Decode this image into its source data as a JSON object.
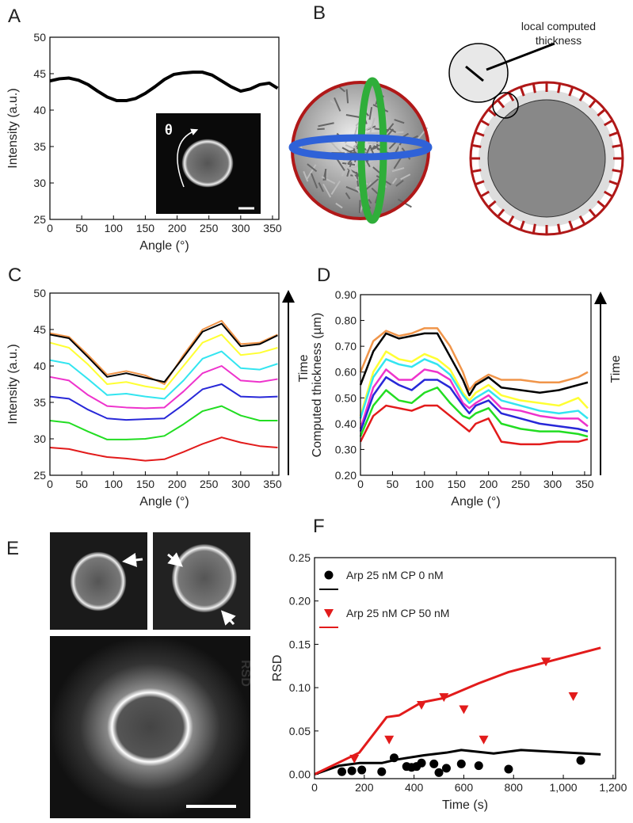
{
  "chart_data": [
    {
      "type": "line",
      "panel": "A",
      "xlabel": "Angle (°)",
      "ylabel": "Intensity (a.u.)",
      "inset_label": "θ",
      "xlim": [
        0,
        360
      ],
      "ylim": [
        25,
        50
      ],
      "xticks": [
        0,
        50,
        100,
        150,
        200,
        250,
        300,
        350
      ],
      "yticks": [
        25,
        30,
        35,
        40,
        45,
        50
      ],
      "x": [
        0,
        15,
        30,
        45,
        60,
        75,
        90,
        105,
        120,
        135,
        150,
        165,
        180,
        195,
        210,
        225,
        240,
        255,
        270,
        285,
        300,
        315,
        330,
        345,
        358
      ],
      "series": [
        {
          "color": "#000000",
          "values": [
            44.0,
            44.3,
            44.4,
            44.1,
            43.5,
            42.6,
            41.8,
            41.3,
            41.3,
            41.6,
            42.3,
            43.2,
            44.2,
            44.9,
            45.1,
            45.2,
            45.2,
            44.8,
            44.0,
            43.2,
            42.6,
            42.9,
            43.5,
            43.7,
            43.0
          ]
        }
      ]
    },
    {
      "type": "line",
      "panel": "C",
      "xlabel": "Angle (°)",
      "ylabel": "Intensity (a.u.)",
      "annotation": "Time",
      "xlim": [
        0,
        360
      ],
      "ylim": [
        25,
        50
      ],
      "xticks": [
        0,
        50,
        100,
        150,
        200,
        250,
        300,
        350
      ],
      "yticks": [
        25,
        30,
        35,
        40,
        45,
        50
      ],
      "x": [
        0,
        30,
        60,
        90,
        120,
        150,
        180,
        210,
        240,
        270,
        300,
        330,
        358
      ],
      "series": [
        {
          "color": "#f0954a",
          "values": [
            44.5,
            44.0,
            41.5,
            38.8,
            39.3,
            38.7,
            37.5,
            41.5,
            45.0,
            46.2,
            43.0,
            43.2,
            44.3
          ]
        },
        {
          "color": "#000000",
          "values": [
            44.3,
            43.8,
            41.2,
            38.5,
            39.0,
            38.4,
            37.8,
            41.2,
            44.7,
            45.8,
            42.7,
            43.0,
            44.2
          ]
        },
        {
          "color": "#ffff33",
          "values": [
            43.2,
            42.5,
            40.2,
            37.5,
            37.8,
            37.2,
            36.8,
            40.0,
            43.2,
            44.3,
            41.5,
            41.8,
            42.5
          ]
        },
        {
          "color": "#33e5f0",
          "values": [
            40.8,
            40.3,
            38.2,
            36.0,
            36.2,
            35.8,
            35.5,
            38.0,
            41.0,
            42.0,
            39.7,
            39.5,
            40.3
          ]
        },
        {
          "color": "#ee33cc",
          "values": [
            38.5,
            38.0,
            36.0,
            34.5,
            34.3,
            34.2,
            34.3,
            36.5,
            39.0,
            40.0,
            38.0,
            37.8,
            38.2
          ]
        },
        {
          "color": "#2828d8",
          "values": [
            35.8,
            35.5,
            34.0,
            32.8,
            32.6,
            32.7,
            32.8,
            34.7,
            36.8,
            37.5,
            35.8,
            35.7,
            35.8
          ]
        },
        {
          "color": "#22dd22",
          "values": [
            32.5,
            32.2,
            31.0,
            29.9,
            29.9,
            30.0,
            30.4,
            32.0,
            33.8,
            34.5,
            33.2,
            32.5,
            32.5
          ]
        },
        {
          "color": "#e21b1b",
          "values": [
            28.8,
            28.6,
            28.0,
            27.5,
            27.3,
            27.0,
            27.2,
            28.2,
            29.3,
            30.2,
            29.5,
            29.0,
            28.8
          ]
        }
      ]
    },
    {
      "type": "line",
      "panel": "D",
      "xlabel": "Angle (°)",
      "ylabel": "Computed thickness (µm)",
      "annotation": "Time",
      "xlim": [
        0,
        360
      ],
      "ylim": [
        0.2,
        0.9
      ],
      "xticks": [
        0,
        50,
        100,
        150,
        200,
        250,
        300,
        350
      ],
      "yticks": [
        {
          "value": 0.2,
          "label": "0.20"
        },
        {
          "value": 0.3,
          "label": "0.30"
        },
        {
          "value": 0.4,
          "label": "0.40"
        },
        {
          "value": 0.5,
          "label": "0.50"
        },
        {
          "value": 0.6,
          "label": "0.60"
        },
        {
          "value": 0.7,
          "label": "0.70"
        },
        {
          "value": 0.8,
          "label": "0.80"
        },
        {
          "value": 0.9,
          "label": "0.90"
        }
      ],
      "x": [
        0,
        20,
        40,
        60,
        80,
        100,
        120,
        140,
        160,
        170,
        180,
        200,
        220,
        250,
        280,
        310,
        340,
        355
      ],
      "series": [
        {
          "color": "#f0954a",
          "values": [
            0.6,
            0.72,
            0.76,
            0.74,
            0.75,
            0.77,
            0.77,
            0.7,
            0.6,
            0.53,
            0.56,
            0.59,
            0.57,
            0.57,
            0.56,
            0.56,
            0.58,
            0.6
          ]
        },
        {
          "color": "#000000",
          "values": [
            0.55,
            0.68,
            0.75,
            0.73,
            0.74,
            0.75,
            0.75,
            0.66,
            0.57,
            0.51,
            0.55,
            0.58,
            0.54,
            0.53,
            0.52,
            0.53,
            0.55,
            0.56
          ]
        },
        {
          "color": "#ffff33",
          "values": [
            0.43,
            0.6,
            0.68,
            0.65,
            0.64,
            0.67,
            0.65,
            0.61,
            0.52,
            0.49,
            0.52,
            0.55,
            0.51,
            0.49,
            0.48,
            0.47,
            0.5,
            0.46
          ]
        },
        {
          "color": "#33e5f0",
          "values": [
            0.42,
            0.58,
            0.65,
            0.63,
            0.62,
            0.65,
            0.63,
            0.59,
            0.51,
            0.48,
            0.5,
            0.53,
            0.49,
            0.47,
            0.45,
            0.44,
            0.45,
            0.42
          ]
        },
        {
          "color": "#ee33cc",
          "values": [
            0.38,
            0.54,
            0.61,
            0.57,
            0.57,
            0.61,
            0.6,
            0.57,
            0.48,
            0.46,
            0.48,
            0.51,
            0.46,
            0.45,
            0.43,
            0.42,
            0.42,
            0.39
          ]
        },
        {
          "color": "#2828d8",
          "values": [
            0.37,
            0.51,
            0.58,
            0.55,
            0.53,
            0.57,
            0.57,
            0.54,
            0.47,
            0.44,
            0.47,
            0.49,
            0.44,
            0.42,
            0.4,
            0.39,
            0.38,
            0.37
          ]
        },
        {
          "color": "#22dd22",
          "values": [
            0.35,
            0.47,
            0.53,
            0.49,
            0.48,
            0.52,
            0.54,
            0.48,
            0.43,
            0.42,
            0.44,
            0.46,
            0.4,
            0.38,
            0.37,
            0.37,
            0.36,
            0.35
          ]
        },
        {
          "color": "#e21b1b",
          "values": [
            0.33,
            0.43,
            0.47,
            0.46,
            0.45,
            0.47,
            0.47,
            0.43,
            0.39,
            0.37,
            0.4,
            0.42,
            0.33,
            0.32,
            0.32,
            0.33,
            0.33,
            0.34
          ]
        }
      ]
    },
    {
      "type": "scatter",
      "panel": "F",
      "xlabel": "Time (s)",
      "ylabel": "RSD",
      "xlim": [
        0,
        1210
      ],
      "ylim": [
        -0.005,
        0.25
      ],
      "xticks": [
        0,
        200,
        400,
        600,
        800,
        {
          "value": 1000,
          "label": "1,000"
        },
        {
          "value": 1200,
          "label": "1,200"
        }
      ],
      "yticks": [
        {
          "value": 0,
          "label": "0.00"
        },
        {
          "value": 0.05,
          "label": "0.05"
        },
        {
          "value": 0.1,
          "label": "0.10"
        },
        {
          "value": 0.15,
          "label": "0.15"
        },
        {
          "value": 0.2,
          "label": "0.20"
        },
        {
          "value": 0.25,
          "label": "0.25"
        }
      ],
      "series": [
        {
          "name": "Arp 25 nM CP 0 nM",
          "color": "#000000",
          "marker": "circle",
          "x": [
            110,
            150,
            190,
            270,
            320,
            370,
            390,
            410,
            430,
            480,
            500,
            530,
            590,
            660,
            780,
            1070
          ],
          "values": [
            0.003,
            0.004,
            0.005,
            0.003,
            0.019,
            0.009,
            0.008,
            0.009,
            0.013,
            0.012,
            0.002,
            0.007,
            0.012,
            0.01,
            0.006,
            0.016
          ],
          "fit_x": [
            0,
            100,
            180,
            270,
            330,
            440,
            530,
            590,
            720,
            830,
            1150
          ],
          "fit_values": [
            0,
            0.01,
            0.013,
            0.013,
            0.017,
            0.022,
            0.025,
            0.028,
            0.024,
            0.028,
            0.023
          ]
        },
        {
          "name": "Arp 25 nM CP 50 nM",
          "color": "#e21b1b",
          "marker": "triangle",
          "x": [
            160,
            300,
            430,
            520,
            600,
            680,
            930,
            1040
          ],
          "values": [
            0.018,
            0.04,
            0.08,
            0.089,
            0.075,
            0.04,
            0.13,
            0.09
          ],
          "fit_x": [
            0,
            180,
            290,
            340,
            430,
            520,
            660,
            780,
            1150
          ],
          "fit_values": [
            0,
            0.025,
            0.066,
            0.068,
            0.083,
            0.088,
            0.105,
            0.118,
            0.146
          ]
        }
      ]
    }
  ],
  "diagram_b": {
    "panel": "B",
    "annotation": [
      "local computed",
      "thickness"
    ]
  },
  "image_e": {
    "panel": "E",
    "overlay": "RSD"
  }
}
